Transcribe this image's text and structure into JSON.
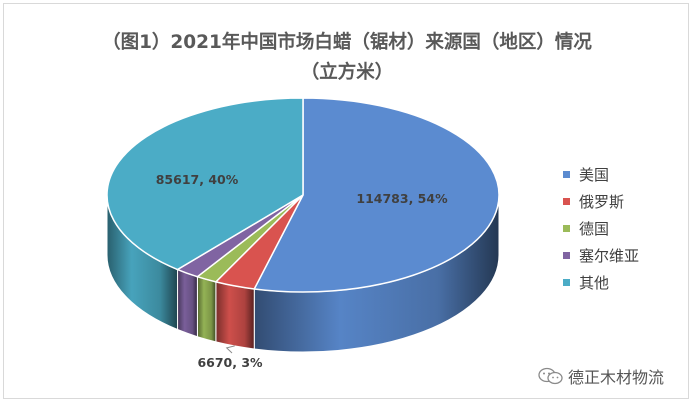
{
  "chart_data": {
    "type": "pie",
    "title_line1": "（图1）2021年中国市场白蜡（锯材）来源国（地区）情况",
    "title_line2": "（立方米）",
    "slices": [
      {
        "name": "美国",
        "value": 114783,
        "percent": 54,
        "label": "114783, 54%",
        "color": "#5b8bd0"
      },
      {
        "name": "俄罗斯",
        "value": 6670,
        "percent": 3,
        "label": "6670, 3%",
        "color": "#d9534f"
      },
      {
        "name": "德国",
        "value": null,
        "percent": null,
        "label": "",
        "color": "#9bbb59"
      },
      {
        "name": "塞尔维亚",
        "value": null,
        "percent": null,
        "label": "",
        "color": "#8064a2"
      },
      {
        "name": "其他",
        "value": 85617,
        "percent": 40,
        "label": "85617, 40%",
        "color": "#4bacc6"
      }
    ],
    "legend_position": "right"
  },
  "watermark": {
    "text": "德正木材物流",
    "icon": "wechat-icon"
  }
}
